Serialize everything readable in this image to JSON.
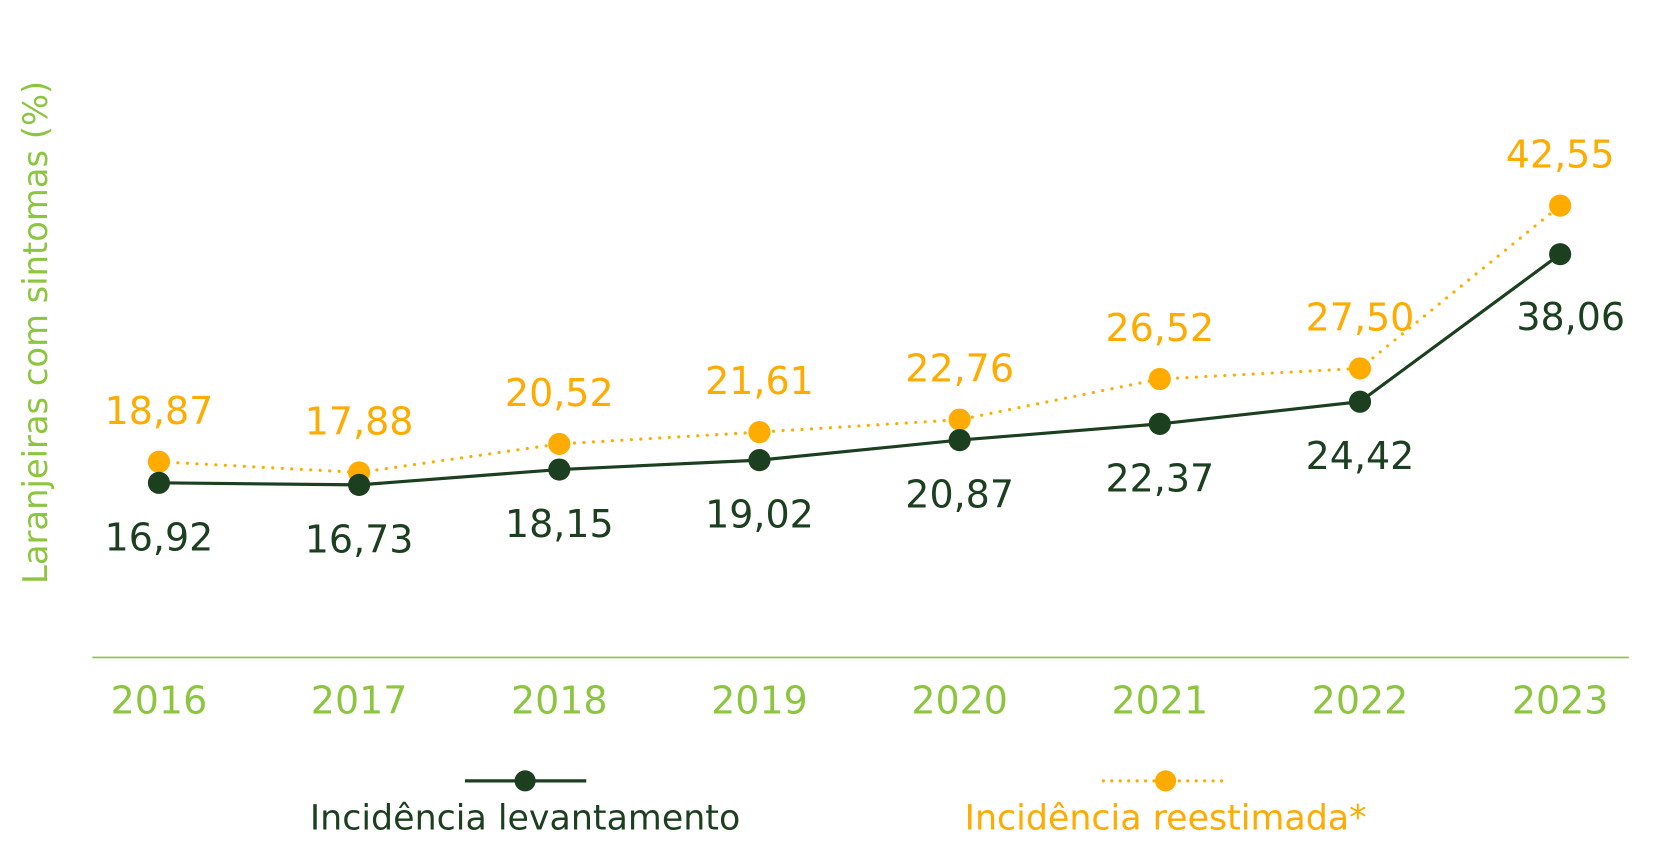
{
  "chart_data": {
    "type": "line",
    "title": "",
    "xlabel": "",
    "ylabel": "Laranjeiras com sintomas (%)",
    "categories": [
      "2016",
      "2017",
      "2018",
      "2019",
      "2020",
      "2021",
      "2022",
      "2023"
    ],
    "series": [
      {
        "name": "Incidência levantamento",
        "color": "#1b3f1f",
        "style": "solid",
        "values": [
          16.92,
          16.73,
          18.15,
          19.02,
          20.87,
          22.37,
          24.42,
          38.06
        ],
        "labels": [
          "16,92",
          "16,73",
          "18,15",
          "19,02",
          "20,87",
          "22,37",
          "24,42",
          "38,06"
        ]
      },
      {
        "name": "Incidência reestimada*",
        "color": "#ffab00",
        "style": "dotted",
        "values": [
          18.87,
          17.88,
          20.52,
          21.61,
          22.76,
          26.52,
          27.5,
          42.55
        ],
        "labels": [
          "18,87",
          "17,88",
          "20,52",
          "21,61",
          "22,76",
          "26,52",
          "27,50",
          "42,55"
        ]
      }
    ],
    "grid": false,
    "legend_position": "bottom",
    "axis_color": "#8cc63f"
  }
}
